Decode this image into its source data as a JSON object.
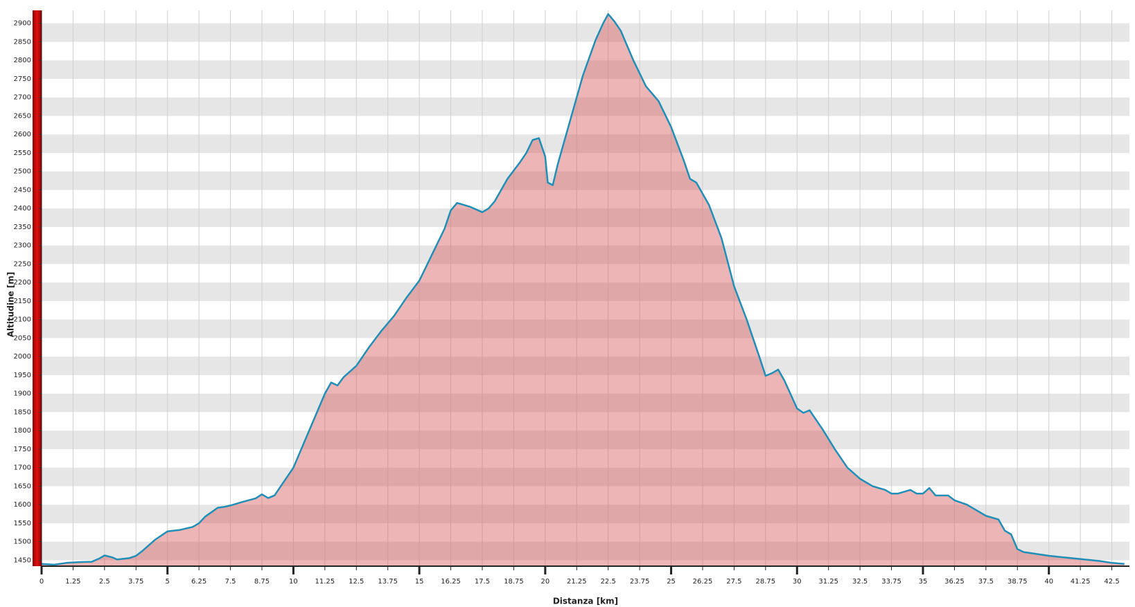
{
  "chart_data": {
    "type": "area",
    "x_label": "Distanza [km]",
    "y_label": "Altitudine [m]",
    "xlim": [
      0,
      43.2
    ],
    "ylim": [
      1434,
      2935
    ],
    "xticks": [
      0,
      1.25,
      2.5,
      3.75,
      5,
      6.25,
      7.5,
      8.75,
      10,
      11.25,
      12.5,
      13.75,
      15,
      16.25,
      17.5,
      18.75,
      20,
      21.25,
      22.5,
      23.75,
      25,
      26.25,
      27.5,
      28.75,
      30,
      31.25,
      32.5,
      33.75,
      35,
      36.25,
      37.5,
      38.75,
      40,
      41.25,
      42.5
    ],
    "yticks": [
      1450,
      1500,
      1550,
      1600,
      1650,
      1700,
      1750,
      1800,
      1850,
      1900,
      1950,
      2000,
      2050,
      2100,
      2150,
      2200,
      2250,
      2300,
      2350,
      2400,
      2450,
      2500,
      2550,
      2600,
      2650,
      2700,
      2750,
      2800,
      2850,
      2900
    ],
    "grid": true,
    "series": [
      {
        "color": "#1f8fb8",
        "fill": "#d65c5c",
        "x": [
          0,
          0.5,
          1,
          1.5,
          2,
          2.3,
          2.5,
          2.8,
          3,
          3.5,
          3.75,
          4,
          4.5,
          5,
          5.5,
          6,
          6.25,
          6.5,
          7,
          7.25,
          7.5,
          8,
          8.5,
          8.75,
          9,
          9.25,
          9.5,
          10,
          10.5,
          11,
          11.25,
          11.5,
          11.75,
          12,
          12.5,
          13,
          13.5,
          14,
          14.5,
          15,
          15.5,
          16,
          16.25,
          16.5,
          17,
          17.5,
          17.75,
          18,
          18.5,
          19,
          19.25,
          19.5,
          19.75,
          20,
          20.1,
          20.3,
          20.5,
          21,
          21.5,
          22,
          22.3,
          22.5,
          22.75,
          23,
          23.5,
          24,
          24.25,
          24.5,
          25,
          25.5,
          25.75,
          26,
          26.5,
          27,
          27.5,
          28,
          28.5,
          28.75,
          29,
          29.25,
          29.5,
          30,
          30.25,
          30.5,
          31,
          31.5,
          32,
          32.5,
          33,
          33.5,
          33.75,
          34,
          34.5,
          34.75,
          35,
          35.25,
          35.5,
          36,
          36.25,
          36.75,
          37,
          37.5,
          38,
          38.25,
          38.5,
          38.75,
          39,
          40,
          41,
          42,
          42.5,
          43
        ],
        "values": [
          1440,
          1438,
          1443,
          1445,
          1446,
          1455,
          1463,
          1458,
          1452,
          1456,
          1462,
          1475,
          1505,
          1528,
          1532,
          1540,
          1550,
          1568,
          1592,
          1594,
          1598,
          1608,
          1617,
          1628,
          1618,
          1625,
          1650,
          1700,
          1780,
          1860,
          1900,
          1930,
          1922,
          1945,
          1975,
          2025,
          2070,
          2110,
          2160,
          2205,
          2275,
          2345,
          2395,
          2415,
          2405,
          2390,
          2400,
          2420,
          2480,
          2525,
          2550,
          2585,
          2590,
          2540,
          2470,
          2463,
          2520,
          2640,
          2760,
          2855,
          2900,
          2925,
          2905,
          2880,
          2800,
          2730,
          2710,
          2690,
          2620,
          2530,
          2480,
          2470,
          2410,
          2320,
          2190,
          2100,
          2000,
          1948,
          1955,
          1965,
          1935,
          1860,
          1848,
          1855,
          1805,
          1750,
          1700,
          1670,
          1650,
          1640,
          1630,
          1630,
          1640,
          1630,
          1630,
          1645,
          1625,
          1625,
          1612,
          1600,
          1590,
          1570,
          1560,
          1530,
          1520,
          1480,
          1472,
          1462,
          1455,
          1448,
          1443,
          1440
        ]
      }
    ]
  }
}
